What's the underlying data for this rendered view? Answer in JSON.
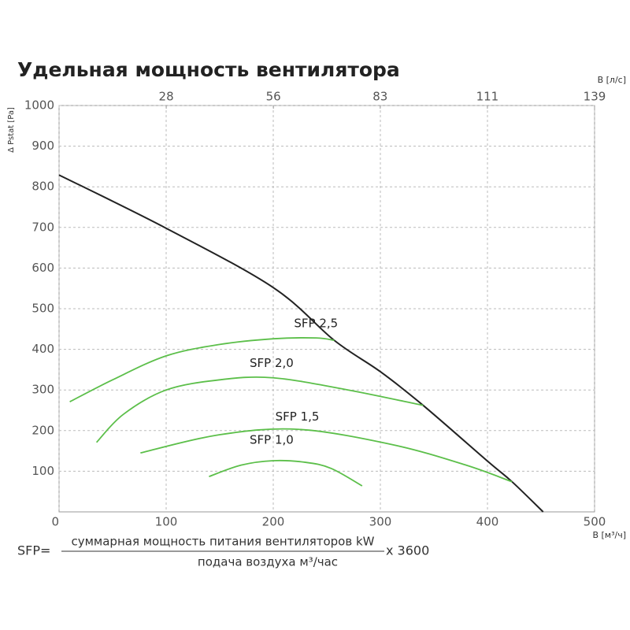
{
  "chart_data": {
    "type": "line",
    "title": "Удельная мощность вентилятора",
    "ylabel": "Δ Pstat [Pa]",
    "xlabel": "В [м³/ч]",
    "x2label": "В [л/с]",
    "xlim": [
      0,
      500
    ],
    "xticks": [
      0,
      100,
      200,
      300,
      400,
      500
    ],
    "x2lim": [
      0,
      138.9
    ],
    "x2ticks": [
      {
        "value": 27.8,
        "label": "28"
      },
      {
        "value": 55.6,
        "label": "56"
      },
      {
        "value": 83.3,
        "label": "83"
      },
      {
        "value": 111.1,
        "label": "111"
      },
      {
        "value": 138.9,
        "label": "139"
      }
    ],
    "ylim": [
      0,
      1000
    ],
    "yticks": [
      100,
      200,
      300,
      400,
      500,
      600,
      700,
      800,
      900,
      1000
    ],
    "grid": true,
    "series": [
      {
        "color": "#222222",
        "x": [
          0,
          100,
          200,
          257,
          300,
          340,
          400,
          423,
          452
        ],
        "values": [
          829,
          698,
          552,
          422,
          345,
          262,
          125,
          74,
          0
        ]
      },
      {
        "name": "SFP 2,5",
        "color": "#5cbf4a",
        "x": [
          10,
          50,
          100,
          150,
          200,
          240,
          257
        ],
        "values": [
          271,
          325,
          384,
          412,
          426,
          428,
          422
        ]
      },
      {
        "name": "SFP 2,0",
        "color": "#5cbf4a",
        "x": [
          35,
          60,
          100,
          150,
          200,
          270,
          340
        ],
        "values": [
          171,
          240,
          300,
          325,
          330,
          300,
          262
        ]
      },
      {
        "name": "SFP 1,5",
        "color": "#5cbf4a",
        "x": [
          76,
          150,
          224,
          312,
          380,
          423
        ],
        "values": [
          145,
          190,
          203,
          165,
          115,
          74
        ]
      },
      {
        "name": "SFP 1,0",
        "color": "#5cbf4a",
        "x": [
          140,
          170,
          200,
          230,
          254,
          283
        ],
        "values": [
          87,
          115,
          126,
          122,
          107,
          64
        ]
      }
    ],
    "formula": {
      "lhs": "SFP=",
      "numerator": "суммарная мощность питания вентиляторов kW",
      "denominator": "подача воздуха м³/час",
      "factor": "x 3600"
    }
  }
}
